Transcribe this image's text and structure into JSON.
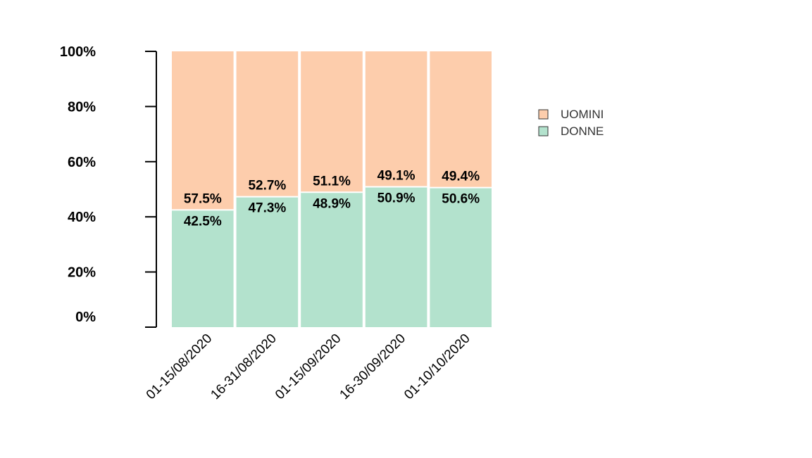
{
  "chart_data": {
    "type": "bar",
    "stacked": true,
    "orientation": "vertical",
    "categories": [
      "01-15/08/2020",
      "16-31/08/2020",
      "01-15/09/2020",
      "16-30/09/2020",
      "01-10/10/2020"
    ],
    "series": [
      {
        "name": "DONNE",
        "color": "#b3e2cd",
        "values": [
          42.5,
          47.3,
          48.9,
          50.9,
          50.6
        ],
        "labels": [
          "42.5%",
          "47.3%",
          "48.9%",
          "50.9%",
          "50.6%"
        ]
      },
      {
        "name": "UOMINI",
        "color": "#fdcdac",
        "values": [
          57.5,
          52.7,
          51.1,
          49.1,
          49.4
        ],
        "labels": [
          "57.5%",
          "52.7%",
          "51.1%",
          "49.1%",
          "49.4%"
        ]
      }
    ],
    "ylim": [
      0,
      100
    ],
    "yticks": [
      0,
      20,
      40,
      60,
      80,
      100
    ],
    "ytick_labels": [
      "0%",
      "20%",
      "40%",
      "60%",
      "80%",
      "100%"
    ],
    "legend_order": [
      "UOMINI",
      "DONNE"
    ],
    "legend_position": "right",
    "grid": false
  }
}
